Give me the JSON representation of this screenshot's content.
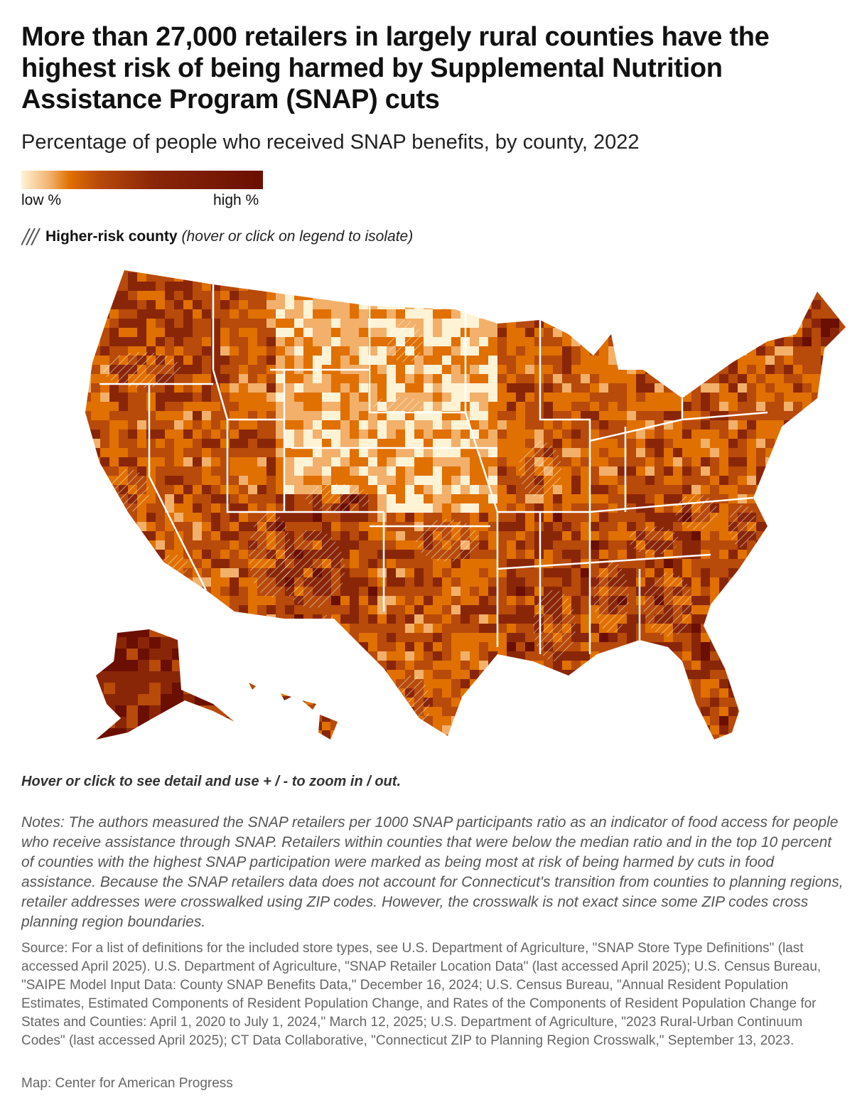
{
  "title": "More than 27,000 retailers in largely rural counties have the highest risk of being harmed by Supplemental Nutrition Assistance Program (SNAP) cuts",
  "subtitle": "Percentage of people who received SNAP benefits, by county, 2022",
  "legend": {
    "low_label": "low %",
    "high_label": "high %",
    "colors": [
      "#fff3d6",
      "#f2b06a",
      "#e07000",
      "#b84a0a",
      "#8a2608",
      "#6a0f02"
    ],
    "hatch_label": "Higher-risk county",
    "hatch_note": "(hover or click on legend to isolate)",
    "hatch_icon": "diagonal-hatch"
  },
  "hint": "Hover or click to see detail and use + / - to zoom in / out.",
  "notes": "Notes: The authors measured the SNAP retailers per 1000 SNAP participants ratio as an indicator of food access for people who receive assistance through SNAP. Retailers within counties that were below the median ratio and in the top 10 percent of counties with the highest SNAP participation were marked as being most at risk of being harmed by cuts in food assistance. Because the SNAP retailers data does not account for Connecticut's transition from counties to planning regions, retailer addresses were crosswalked using ZIP codes. However, the crosswalk is not exact since some ZIP codes cross planning region boundaries.",
  "source": "Source: For a list of definitions for the included store types, see U.S. Department of Agriculture, \"SNAP Store Type Definitions\" (last accessed April 2025). U.S. Department of Agriculture, \"SNAP Retailer Location Data\" (last accessed April 2025); U.S. Census Bureau, \"SAIPE Model Input Data: County SNAP Benefits Data,\" December 16, 2024; U.S. Census Bureau, \"Annual Resident Population Estimates, Estimated Components of Resident Population Change, and Rates of the Components of Resident Population Change for States and Counties: April 1, 2020 to July 1, 2024,\" March 12, 2025; U.S. Department of Agriculture, \"2023 Rural-Urban Continuum Codes\" (last accessed April 2025); CT Data Collaborative, \"Connecticut ZIP to Planning Region Crosswalk,\" September 13, 2023.",
  "credit": "Map: Center for American Progress"
}
